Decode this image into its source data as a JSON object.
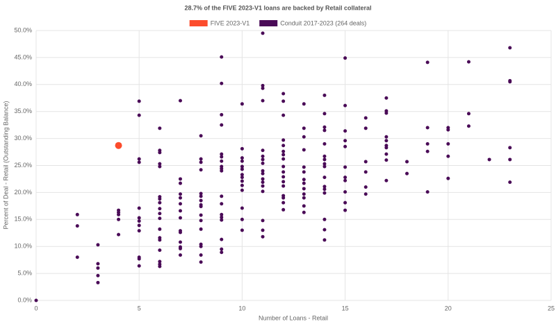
{
  "chart_data": {
    "type": "scatter",
    "title": "28.7% of the FIVE 2023-V1 loans are backed by Retail collateral",
    "x_label": "Number of Loans - Retail",
    "y_label": "Percent of Deal - Retail (Outstanding Balance)",
    "xlim": [
      0,
      25
    ],
    "xticks": [
      0,
      5,
      10,
      15,
      20,
      25
    ],
    "ylim": [
      0,
      50
    ],
    "yticks": [
      {
        "value": 0,
        "label": "0.0%"
      },
      {
        "value": 5,
        "label": "5.0%"
      },
      {
        "value": 10,
        "label": "10.0%"
      },
      {
        "value": 15,
        "label": "15.0%"
      },
      {
        "value": 20,
        "label": "20.0%"
      },
      {
        "value": 25,
        "label": "25.0%"
      },
      {
        "value": 30,
        "label": "30.0%"
      },
      {
        "value": 35,
        "label": "35.0%"
      },
      {
        "value": 40,
        "label": "40.0%"
      },
      {
        "value": 45,
        "label": "45.0%"
      },
      {
        "value": 50,
        "label": "50.0%"
      }
    ],
    "grid": true,
    "series": [
      {
        "name": "FIVE 2023-V1",
        "color": "#fc4c2c",
        "x": [
          4
        ],
        "values": [
          28.7
        ]
      },
      {
        "name": "Conduit 2017-2023 (264 deals)",
        "color": "#4a0b57",
        "x": [
          0,
          2,
          2,
          2,
          3,
          3,
          3,
          3,
          3,
          4,
          4,
          4,
          4,
          4,
          5,
          5,
          5,
          5,
          5,
          5,
          5,
          5,
          5,
          5,
          5,
          5,
          6,
          6,
          6,
          6,
          6,
          6,
          6,
          6,
          6,
          6,
          6,
          6,
          6,
          6,
          6,
          6,
          6,
          6,
          7,
          7,
          7,
          7,
          7,
          7,
          7,
          7,
          7,
          7,
          7,
          7,
          7,
          7,
          8,
          8,
          8,
          8,
          8,
          8,
          8,
          8,
          8,
          8,
          8,
          8,
          8,
          8,
          8,
          8,
          9,
          9,
          9,
          9,
          9,
          9,
          9,
          9,
          9,
          9,
          9,
          9,
          9,
          9,
          9,
          9,
          9,
          9,
          10,
          10,
          10,
          10,
          10,
          10,
          10,
          10,
          10,
          10,
          10,
          10,
          10,
          10,
          11,
          11,
          11,
          11,
          11,
          11,
          11,
          11,
          11,
          11,
          11,
          11,
          11,
          11,
          11,
          11,
          11,
          12,
          12,
          12,
          12,
          12,
          12,
          12,
          12,
          12,
          12,
          12,
          12,
          12,
          12,
          12,
          12,
          12,
          13,
          13,
          13,
          13,
          13,
          13,
          13,
          13,
          13,
          13,
          13,
          13,
          13,
          14,
          14,
          14,
          14,
          14,
          14,
          14,
          14,
          14,
          14,
          14,
          14,
          14,
          14,
          14,
          14,
          15,
          15,
          15,
          15,
          15,
          15,
          15,
          15,
          15,
          15,
          15,
          16,
          16,
          16,
          16,
          16,
          16,
          17,
          17,
          17,
          17,
          17,
          17,
          17,
          17,
          17,
          17,
          18,
          18,
          19,
          19,
          19,
          19,
          19,
          20,
          20,
          20,
          20,
          20,
          21,
          21,
          21,
          22,
          23,
          23,
          23,
          23,
          23,
          23
        ],
        "values": [
          0,
          15.9,
          13.8,
          8.0,
          10.3,
          6.8,
          6.0,
          4.6,
          3.3,
          16.7,
          16.3,
          15.9,
          15.0,
          12.2,
          36.9,
          34.3,
          26.2,
          25.6,
          17.1,
          15.3,
          14.7,
          13.9,
          12.9,
          8.0,
          7.7,
          6.4,
          31.9,
          27.8,
          27.4,
          25.3,
          24.8,
          19.2,
          18.8,
          18.1,
          17.0,
          16.1,
          15.2,
          13.2,
          11.6,
          11.2,
          9.3,
          7.2,
          6.7,
          6.3,
          37.0,
          22.5,
          21.7,
          19.7,
          19.0,
          17.9,
          16.6,
          15.3,
          12.9,
          12.6,
          10.8,
          9.9,
          9.6,
          8.4,
          30.5,
          26.2,
          25.6,
          24.2,
          19.8,
          19.3,
          18.5,
          17.7,
          17.4,
          15.8,
          14.8,
          13.2,
          10.4,
          10.0,
          8.4,
          7.1,
          45.1,
          40.2,
          34.4,
          32.5,
          27.1,
          26.6,
          25.8,
          24.8,
          24.4,
          24.0,
          19.3,
          17.9,
          15.9,
          15.4,
          14.9,
          11.3,
          9.5,
          8.9,
          36.4,
          28.1,
          26.4,
          25.8,
          24.8,
          24.3,
          23.3,
          22.8,
          22.1,
          21.3,
          20.4,
          17.1,
          15.0,
          13.0,
          49.5,
          39.8,
          39.3,
          37.0,
          27.8,
          26.7,
          26.1,
          25.4,
          24.0,
          23.5,
          22.5,
          21.9,
          21.2,
          20.2,
          14.8,
          13.0,
          11.8,
          38.3,
          36.9,
          34.3,
          29.7,
          28.7,
          27.6,
          27.0,
          26.2,
          24.8,
          23.8,
          22.9,
          22.0,
          21.2,
          19.4,
          19.0,
          18.1,
          16.8,
          36.4,
          31.9,
          30.3,
          27.9,
          24.7,
          23.8,
          22.4,
          21.7,
          20.7,
          19.7,
          19.0,
          17.5,
          16.3,
          38.0,
          34.6,
          32.1,
          31.5,
          29.0,
          26.7,
          26.1,
          25.3,
          24.8,
          22.8,
          21.1,
          20.6,
          19.9,
          15.0,
          13.1,
          11.2,
          44.9,
          36.1,
          31.4,
          29.6,
          28.5,
          24.7,
          22.8,
          22.2,
          20.1,
          18.1,
          16.7,
          33.8,
          31.9,
          25.7,
          23.8,
          21.0,
          19.7,
          37.5,
          35.1,
          34.7,
          30.3,
          29.6,
          28.7,
          28.3,
          27.1,
          26.0,
          22.2,
          25.7,
          23.5,
          44.1,
          32.0,
          29.0,
          27.6,
          20.1,
          32.0,
          31.6,
          29.0,
          26.7,
          22.6,
          44.2,
          34.6,
          32.3,
          26.1,
          46.8,
          40.7,
          40.5,
          28.3,
          26.1,
          21.9
        ]
      }
    ]
  }
}
